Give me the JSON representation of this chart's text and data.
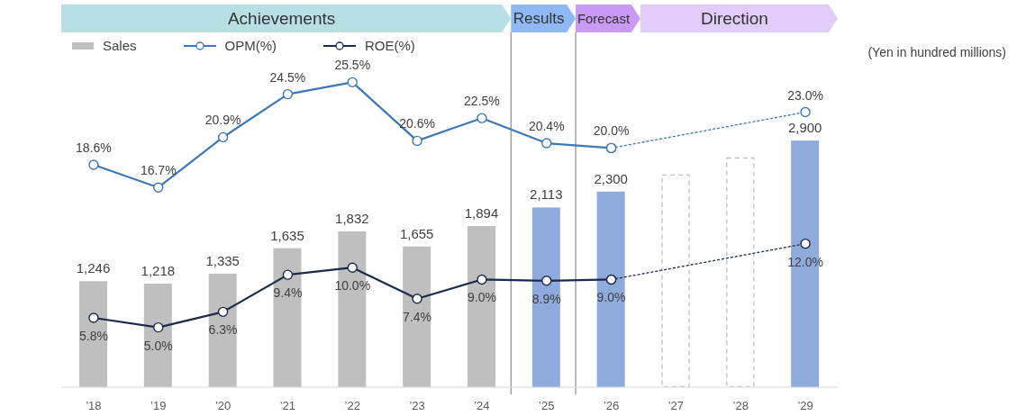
{
  "chart_data": {
    "type": "bar",
    "x": [
      2018,
      2019,
      2020,
      2021,
      2022,
      2023,
      2024,
      2025,
      2026,
      2027,
      2028,
      2029
    ],
    "xlim": [
      2017.5,
      2029.5
    ],
    "xticks": [
      {
        "value": 2018,
        "label": "’18"
      },
      {
        "value": 2019,
        "label": "’19"
      },
      {
        "value": 2020,
        "label": "’20"
      },
      {
        "value": 2021,
        "label": "’21"
      },
      {
        "value": 2022,
        "label": "’22"
      },
      {
        "value": 2023,
        "label": "’23"
      },
      {
        "value": 2024,
        "label": "’24"
      },
      {
        "value": 2025,
        "label": "’25"
      },
      {
        "value": 2026,
        "label": "’26"
      },
      {
        "value": 2027,
        "label": "’27"
      },
      {
        "value": 2028,
        "label": "’28"
      },
      {
        "value": 2029,
        "label": "’29"
      }
    ],
    "ylim": [
      0,
      4500
    ],
    "y2lim": [
      0,
      32
    ],
    "series": [
      {
        "name": "Sales",
        "color": "#bfbfbf",
        "colors": [
          "#bfbfbf",
          "#bfbfbf",
          "#bfbfbf",
          "#bfbfbf",
          "#bfbfbf",
          "#bfbfbf",
          "#bfbfbf",
          "#8faadc",
          "#8faadc",
          null,
          null,
          "#8faadc"
        ],
        "values": [
          1246,
          1218,
          1335,
          1635,
          1832,
          1655,
          1894,
          2113,
          2300,
          null,
          null,
          2900
        ],
        "value_labels": [
          "1,246",
          "1,218",
          "1,335",
          "1,635",
          "1,832",
          "1,655",
          "1,894",
          "2,113",
          "2,300",
          null,
          null,
          "2,900"
        ]
      },
      {
        "color": "#bfbfbf",
        "line_style": "dashed",
        "values": [
          null,
          null,
          null,
          null,
          null,
          null,
          null,
          null,
          null,
          2500,
          2700,
          null
        ]
      },
      {
        "name": "OPM(%)",
        "type": "line",
        "axis": "y2",
        "color": "#3d78b6",
        "line_style": "solid",
        "values": [
          18.6,
          16.7,
          20.9,
          24.5,
          25.5,
          20.6,
          22.5,
          20.4,
          20.0,
          null,
          null,
          null
        ],
        "value_labels": [
          "18.6%",
          "16.7%",
          "20.9%",
          "24.5%",
          "25.5%",
          "20.6%",
          "22.5%",
          "20.4%",
          "20.0%",
          null,
          null,
          null
        ]
      },
      {
        "type": "line",
        "axis": "y2",
        "color": "#3d78b6",
        "line_style": "dotted",
        "values": [
          null,
          null,
          null,
          null,
          null,
          null,
          null,
          null,
          20.0,
          null,
          null,
          23.0
        ],
        "value_labels": [
          null,
          null,
          null,
          null,
          null,
          null,
          null,
          null,
          null,
          null,
          null,
          "23.0%"
        ]
      },
      {
        "name": "ROE(%)",
        "type": "line",
        "axis": "y2",
        "color": "#1c2b4c",
        "line_style": "solid",
        "values": [
          5.8,
          5.0,
          6.3,
          9.4,
          10.0,
          7.4,
          9.0,
          8.9,
          9.0,
          null,
          null,
          null
        ],
        "value_labels": [
          "5.8%",
          "5.0%",
          "6.3%",
          "9.4%",
          "10.0%",
          "7.4%",
          "9.0%",
          "8.9%",
          "9.0%",
          null,
          null,
          null
        ]
      },
      {
        "type": "line",
        "axis": "y2",
        "color": "#1c2b4c",
        "line_style": "dotted",
        "values": [
          null,
          null,
          null,
          null,
          null,
          null,
          null,
          null,
          9.0,
          null,
          null,
          12.0
        ],
        "value_labels": [
          null,
          null,
          null,
          null,
          null,
          null,
          null,
          null,
          null,
          null,
          null,
          "12.0%"
        ]
      }
    ],
    "bands": [
      {
        "axis": "x",
        "from": 2017.5,
        "to": 2024.45,
        "label": "Achievements",
        "color": "#b7dfe4"
      },
      {
        "axis": "x",
        "from": 2024.45,
        "to": 2025.45,
        "label": "Results",
        "color": "#8eb9f4"
      },
      {
        "axis": "x",
        "from": 2025.45,
        "to": 2026.45,
        "label": "Forecast",
        "color": "#c99af5"
      },
      {
        "axis": "x",
        "from": 2026.45,
        "to": 2029.5,
        "label": "Direction",
        "color": "#e2cdfa"
      }
    ],
    "ref_lines": [
      {
        "axis": "x",
        "value": 2024.45,
        "color": "#8c8c8c"
      },
      {
        "axis": "x",
        "value": 2025.45,
        "color": "#8c8c8c"
      }
    ],
    "annotations": [
      "(Yen in hundred millions)"
    ],
    "legend": "top left",
    "marker": "circle",
    "tick_labels": "x"
  }
}
